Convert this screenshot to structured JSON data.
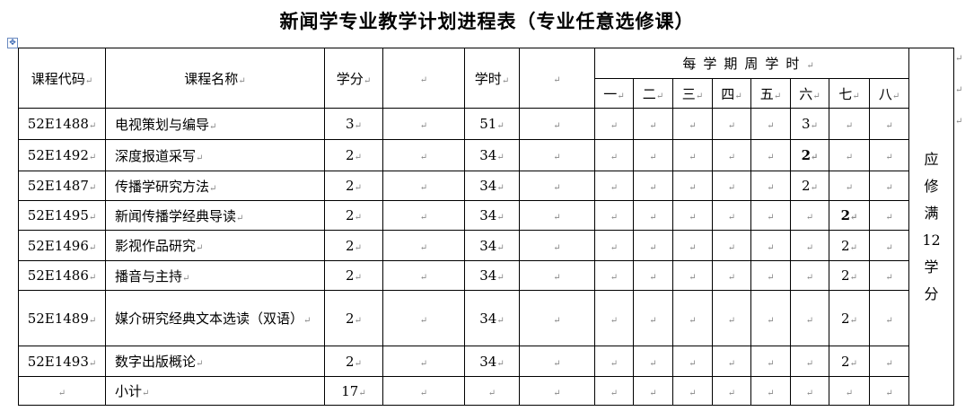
{
  "title": "新闻学专业教学计划进程表（专业任意选修课）",
  "headers": {
    "code": "课程代码",
    "name": "课程名称",
    "credit": "学分",
    "hours": "学时",
    "weekly": "每学期周学时",
    "semesters": [
      "一",
      "二",
      "三",
      "四",
      "五",
      "六",
      "七",
      "八"
    ]
  },
  "note": "应修满12学分",
  "rows": [
    {
      "code": "52E1488",
      "name": "电视策划与编导",
      "credit": "3",
      "hours": "51",
      "semester": 6,
      "weekly": "3",
      "bold": false
    },
    {
      "code": "52E1492",
      "name": "深度报道采写",
      "credit": "2",
      "hours": "34",
      "semester": 6,
      "weekly": "2",
      "bold": true
    },
    {
      "code": "52E1487",
      "name": "传播学研究方法",
      "credit": "2",
      "hours": "34",
      "semester": 6,
      "weekly": "2",
      "bold": false
    },
    {
      "code": "52E1495",
      "name": "新闻传播学经典导读",
      "credit": "2",
      "hours": "34",
      "semester": 7,
      "weekly": "2",
      "bold": true
    },
    {
      "code": "52E1496",
      "name": "影视作品研究",
      "credit": "2",
      "hours": "34",
      "semester": 7,
      "weekly": "2",
      "bold": false
    },
    {
      "code": "52E1486",
      "name": "播音与主持",
      "credit": "2",
      "hours": "34",
      "semester": 7,
      "weekly": "2",
      "bold": false
    },
    {
      "code": "52E1489",
      "name": "媒介研究经典文本选读（双语）",
      "credit": "2",
      "hours": "34",
      "semester": 7,
      "weekly": "2",
      "bold": false
    },
    {
      "code": "52E1493",
      "name": "数字出版概论",
      "credit": "2",
      "hours": "34",
      "semester": 7,
      "weekly": "2",
      "bold": false
    }
  ],
  "subtotal": {
    "label": "小计",
    "credit": "17"
  }
}
